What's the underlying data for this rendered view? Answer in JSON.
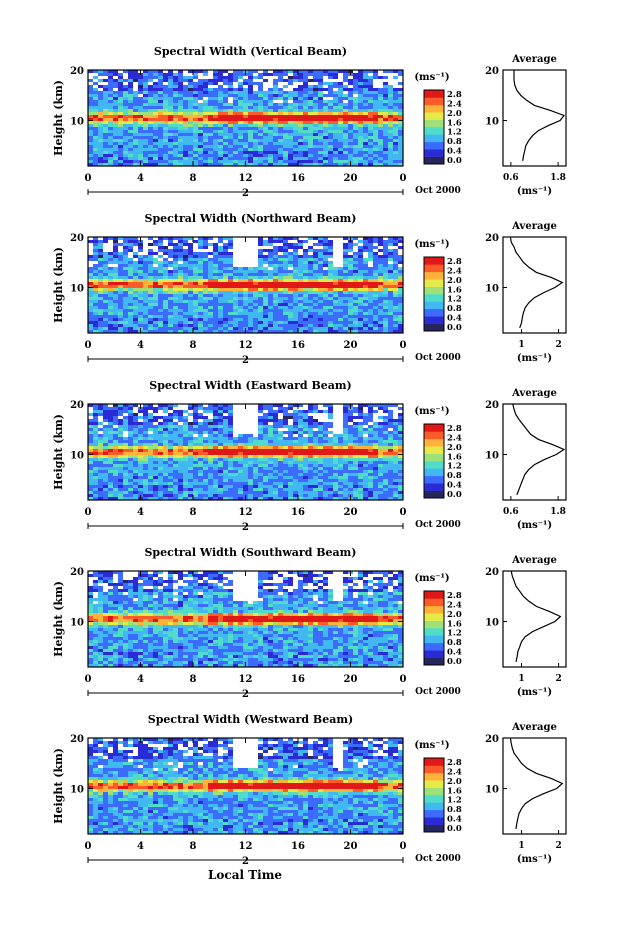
{
  "figure": {
    "xlabel_bottom": "Local Time",
    "date_label": "Oct 2000",
    "day_marker": "2",
    "cbar_unit": "(ms⁻¹)",
    "avg_xlabel": "(ms⁻¹)"
  },
  "colorbar": {
    "ticks": [
      "2.8",
      "2.4",
      "2.0",
      "1.6",
      "1.2",
      "0.8",
      "0.4",
      "0.0"
    ],
    "colors": [
      "#26265e",
      "#2b2bd6",
      "#3c6cff",
      "#42b8f2",
      "#50dcc8",
      "#9ee07a",
      "#e6ea48",
      "#ffb13a",
      "#ff5a2a",
      "#e01818"
    ]
  },
  "chart_data": [
    {
      "type": "heatmap",
      "title": "Spectral Width (Vertical Beam)",
      "ylabel": "Height (km)",
      "xticks": [
        "0",
        "4",
        "8",
        "12",
        "16",
        "20",
        "0"
      ],
      "yticks": [
        "20",
        "10"
      ],
      "xlim": [
        0,
        24
      ],
      "ylim": [
        1,
        20
      ],
      "average": {
        "title": "Average",
        "xticks": [
          "0.6",
          "1.8"
        ],
        "xlim": [
          0.4,
          2.0
        ],
        "height": [
          2,
          3,
          4,
          5,
          6,
          7,
          8,
          9,
          10,
          11,
          12,
          13,
          14,
          15,
          16,
          17,
          18,
          19,
          20
        ],
        "value": [
          0.9,
          0.92,
          0.95,
          0.98,
          1.05,
          1.15,
          1.3,
          1.55,
          1.85,
          1.95,
          1.6,
          1.2,
          1.0,
          0.85,
          0.75,
          0.7,
          0.68,
          0.68,
          0.68
        ]
      }
    },
    {
      "type": "heatmap",
      "title": "Spectral Width (Northward Beam)",
      "ylabel": "Height (km)",
      "xticks": [
        "0",
        "4",
        "8",
        "12",
        "16",
        "20",
        "0"
      ],
      "yticks": [
        "20",
        "10"
      ],
      "xlim": [
        0,
        24
      ],
      "ylim": [
        1,
        20
      ],
      "average": {
        "title": "Average",
        "xticks": [
          "1",
          "2"
        ],
        "xlim": [
          0.5,
          2.2
        ],
        "height": [
          2,
          3,
          4,
          5,
          6,
          7,
          8,
          9,
          10,
          11,
          12,
          13,
          14,
          15,
          16,
          17,
          18,
          19,
          20
        ],
        "value": [
          0.95,
          1.0,
          1.02,
          1.05,
          1.1,
          1.2,
          1.35,
          1.6,
          1.9,
          2.1,
          1.8,
          1.4,
          1.2,
          1.05,
          0.95,
          0.85,
          0.8,
          0.72,
          0.7
        ]
      }
    },
    {
      "type": "heatmap",
      "title": "Spectral Width (Eastward Beam)",
      "ylabel": "Height (km)",
      "xticks": [
        "0",
        "4",
        "8",
        "12",
        "16",
        "20",
        "0"
      ],
      "yticks": [
        "20",
        "10"
      ],
      "xlim": [
        0,
        24
      ],
      "ylim": [
        1,
        20
      ],
      "average": {
        "title": "Average",
        "xticks": [
          "0.6",
          "1.8"
        ],
        "xlim": [
          0.4,
          2.0
        ],
        "height": [
          2,
          3,
          4,
          5,
          6,
          7,
          8,
          9,
          10,
          11,
          12,
          13,
          14,
          15,
          16,
          17,
          18,
          19,
          20
        ],
        "value": [
          0.75,
          0.8,
          0.85,
          0.9,
          0.95,
          1.05,
          1.2,
          1.45,
          1.75,
          1.95,
          1.65,
          1.3,
          1.1,
          1.0,
          0.9,
          0.8,
          0.72,
          0.68,
          0.65
        ]
      }
    },
    {
      "type": "heatmap",
      "title": "Spectral Width (Southward Beam)",
      "ylabel": "Height (km)",
      "xticks": [
        "0",
        "4",
        "8",
        "12",
        "16",
        "20",
        "0"
      ],
      "yticks": [
        "20",
        "10"
      ],
      "xlim": [
        0,
        24
      ],
      "ylim": [
        1,
        20
      ],
      "average": {
        "title": "Average",
        "xticks": [
          "1",
          "2"
        ],
        "xlim": [
          0.5,
          2.2
        ],
        "height": [
          2,
          3,
          4,
          5,
          6,
          7,
          8,
          9,
          10,
          11,
          12,
          13,
          14,
          15,
          16,
          17,
          18,
          19,
          20
        ],
        "value": [
          0.85,
          0.88,
          0.9,
          0.95,
          1.0,
          1.1,
          1.3,
          1.6,
          1.9,
          2.05,
          1.75,
          1.4,
          1.2,
          1.05,
          0.95,
          0.85,
          0.8,
          0.75,
          0.72
        ]
      }
    },
    {
      "type": "heatmap",
      "title": "Spectral Width (Westward Beam)",
      "ylabel": "Height (km)",
      "xticks": [
        "0",
        "4",
        "8",
        "12",
        "16",
        "20",
        "0"
      ],
      "yticks": [
        "20",
        "10"
      ],
      "xlim": [
        0,
        24
      ],
      "ylim": [
        1,
        20
      ],
      "average": {
        "title": "Average",
        "xticks": [
          "1",
          "2"
        ],
        "xlim": [
          0.5,
          2.2
        ],
        "height": [
          2,
          3,
          4,
          5,
          6,
          7,
          8,
          9,
          10,
          11,
          12,
          13,
          14,
          15,
          16,
          17,
          18,
          19,
          20
        ],
        "value": [
          0.85,
          0.87,
          0.9,
          0.93,
          1.0,
          1.1,
          1.3,
          1.6,
          1.95,
          2.1,
          1.8,
          1.4,
          1.15,
          1.0,
          0.9,
          0.8,
          0.75,
          0.72,
          0.7
        ]
      }
    }
  ]
}
